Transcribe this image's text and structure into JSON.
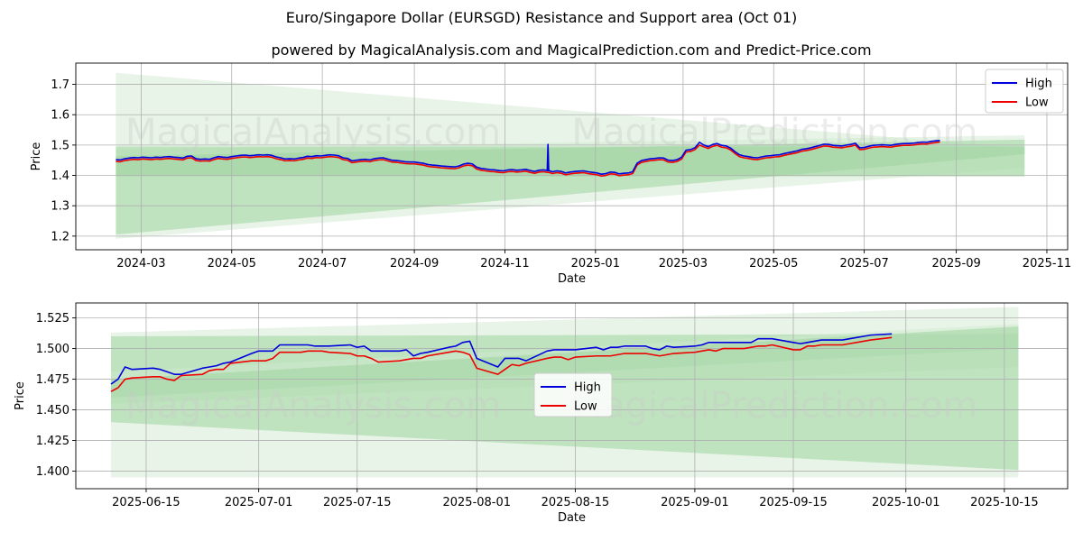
{
  "header": {
    "title": "Euro/Singapore Dollar (EURSGD) Resistance and Support area (Oct 01)",
    "subtitle": "powered by MagicalAnalysis.com and MagicalPrediction.com and Predict-Price.com"
  },
  "watermarks": [
    "MagicalAnalysis.com",
    "MagicalPrediction.com"
  ],
  "colors": {
    "high": "#0000dd",
    "low": "#ee0000",
    "band_dark": "#9fd39f",
    "band_light": "#cfe9cf",
    "grid": "#b0b0b0"
  },
  "chart_data": [
    {
      "type": "line",
      "name": "top-chart",
      "xlabel": "Date",
      "ylabel": "Price",
      "xlim": [
        "2024-01-17",
        "2025-11-15"
      ],
      "ylim": [
        1.155,
        1.77
      ],
      "grid": true,
      "legend": "top-right",
      "x_ticks": [
        "2024-03",
        "2024-05",
        "2024-07",
        "2024-09",
        "2024-11",
        "2025-01",
        "2025-03",
        "2025-05",
        "2025-07",
        "2025-09",
        "2025-11"
      ],
      "y_ticks": [
        "1.2",
        "1.3",
        "1.4",
        "1.5",
        "1.6",
        "1.7"
      ],
      "x_start": "2024-02-13",
      "x_step_days": 3,
      "high": [
        1.452,
        1.451,
        1.455,
        1.457,
        1.459,
        1.458,
        1.46,
        1.459,
        1.458,
        1.46,
        1.459,
        1.461,
        1.462,
        1.46,
        1.459,
        1.457,
        1.463,
        1.464,
        1.455,
        1.453,
        1.454,
        1.453,
        1.458,
        1.462,
        1.46,
        1.459,
        1.462,
        1.464,
        1.466,
        1.467,
        1.465,
        1.466,
        1.468,
        1.467,
        1.468,
        1.466,
        1.461,
        1.458,
        1.454,
        1.455,
        1.454,
        1.457,
        1.459,
        1.463,
        1.462,
        1.465,
        1.464,
        1.466,
        1.468,
        1.467,
        1.465,
        1.458,
        1.456,
        1.448,
        1.45,
        1.452,
        1.453,
        1.451,
        1.455,
        1.457,
        1.458,
        1.454,
        1.45,
        1.449,
        1.447,
        1.445,
        1.444,
        1.444,
        1.442,
        1.44,
        1.436,
        1.434,
        1.433,
        1.431,
        1.43,
        1.429,
        1.428,
        1.431,
        1.437,
        1.44,
        1.438,
        1.427,
        1.423,
        1.421,
        1.419,
        1.418,
        1.416,
        1.415,
        1.418,
        1.419,
        1.417,
        1.418,
        1.42,
        1.416,
        1.413,
        1.417,
        1.418,
        1.416,
        1.412,
        1.415,
        1.413,
        1.408,
        1.411,
        1.413,
        1.414,
        1.415,
        1.412,
        1.41,
        1.408,
        1.404,
        1.406,
        1.411,
        1.41,
        1.405,
        1.407,
        1.408,
        1.412,
        1.44,
        1.449,
        1.452,
        1.455,
        1.456,
        1.458,
        1.457,
        1.45,
        1.449,
        1.452,
        1.46,
        1.483,
        1.485,
        1.491,
        1.509,
        1.5,
        1.495,
        1.502,
        1.505,
        1.499,
        1.497,
        1.49,
        1.478,
        1.468,
        1.464,
        1.462,
        1.459,
        1.458,
        1.461,
        1.464,
        1.465,
        1.467,
        1.468,
        1.472,
        1.475,
        1.478,
        1.481,
        1.486,
        1.488,
        1.491,
        1.495,
        1.499,
        1.503,
        1.502,
        1.499,
        1.498,
        1.497,
        1.5,
        1.502,
        1.506,
        1.491,
        1.492,
        1.496,
        1.499,
        1.5,
        1.501,
        1.5,
        1.499,
        1.502,
        1.504,
        1.505,
        1.505,
        1.506,
        1.508,
        1.51,
        1.509,
        1.512,
        1.514,
        1.515
      ],
      "low": [
        1.446,
        1.445,
        1.449,
        1.451,
        1.453,
        1.452,
        1.454,
        1.453,
        1.452,
        1.454,
        1.453,
        1.455,
        1.456,
        1.454,
        1.453,
        1.451,
        1.457,
        1.458,
        1.449,
        1.447,
        1.448,
        1.447,
        1.452,
        1.456,
        1.454,
        1.453,
        1.456,
        1.458,
        1.46,
        1.461,
        1.459,
        1.46,
        1.462,
        1.461,
        1.462,
        1.46,
        1.455,
        1.452,
        1.448,
        1.449,
        1.448,
        1.451,
        1.453,
        1.457,
        1.456,
        1.459,
        1.458,
        1.46,
        1.462,
        1.461,
        1.459,
        1.452,
        1.45,
        1.442,
        1.444,
        1.446,
        1.447,
        1.445,
        1.449,
        1.451,
        1.452,
        1.448,
        1.444,
        1.443,
        1.441,
        1.439,
        1.438,
        1.438,
        1.436,
        1.434,
        1.43,
        1.428,
        1.427,
        1.425,
        1.424,
        1.423,
        1.422,
        1.425,
        1.431,
        1.434,
        1.432,
        1.421,
        1.417,
        1.415,
        1.413,
        1.412,
        1.41,
        1.409,
        1.412,
        1.413,
        1.411,
        1.412,
        1.414,
        1.41,
        1.407,
        1.411,
        1.412,
        1.41,
        1.406,
        1.409,
        1.407,
        1.402,
        1.405,
        1.407,
        1.408,
        1.409,
        1.406,
        1.404,
        1.402,
        1.398,
        1.4,
        1.405,
        1.404,
        1.399,
        1.401,
        1.402,
        1.406,
        1.434,
        1.443,
        1.446,
        1.449,
        1.45,
        1.452,
        1.451,
        1.444,
        1.443,
        1.446,
        1.454,
        1.477,
        1.479,
        1.485,
        1.5,
        1.494,
        1.489,
        1.496,
        1.499,
        1.493,
        1.491,
        1.484,
        1.472,
        1.462,
        1.458,
        1.456,
        1.453,
        1.452,
        1.455,
        1.458,
        1.459,
        1.461,
        1.462,
        1.466,
        1.469,
        1.472,
        1.475,
        1.48,
        1.482,
        1.485,
        1.489,
        1.493,
        1.497,
        1.496,
        1.493,
        1.492,
        1.491,
        1.494,
        1.496,
        1.5,
        1.485,
        1.486,
        1.49,
        1.493,
        1.494,
        1.495,
        1.494,
        1.493,
        1.496,
        1.498,
        1.499,
        1.499,
        1.5,
        1.502,
        1.504,
        1.503,
        1.506,
        1.508,
        1.51
      ],
      "spike": {
        "date": "2024-11-30",
        "high": 1.502,
        "low": 1.41
      },
      "bands": [
        {
          "kind": "light",
          "x0": "2024-02-13",
          "x1": "2025-10-17",
          "top0": 1.738,
          "top1": 1.49,
          "bot0": 1.191,
          "bot1": 1.425
        },
        {
          "kind": "light",
          "x0": "2024-02-13",
          "x1": "2025-10-17",
          "top0": 1.485,
          "top1": 1.532,
          "bot0": 1.395,
          "bot1": 1.395
        },
        {
          "kind": "dark",
          "x0": "2024-02-13",
          "x1": "2025-10-17",
          "top0": 1.495,
          "top1": 1.495,
          "bot0": 1.398,
          "bot1": 1.398
        },
        {
          "kind": "dark",
          "x0": "2024-02-13",
          "x1": "2025-10-17",
          "top0": 1.464,
          "top1": 1.518,
          "bot0": 1.205,
          "bot1": 1.47
        }
      ]
    },
    {
      "type": "line",
      "name": "bottom-chart",
      "xlabel": "Date",
      "ylabel": "Price",
      "xlim": [
        "2025-06-05",
        "2025-10-24"
      ],
      "ylim": [
        1.3857,
        1.5372
      ],
      "grid": true,
      "legend": "center",
      "x_ticks": [
        "2025-06-15",
        "2025-07-01",
        "2025-07-15",
        "2025-08-01",
        "2025-08-15",
        "2025-09-01",
        "2025-09-15",
        "2025-10-01",
        "2025-10-15"
      ],
      "y_ticks": [
        "1.400",
        "1.425",
        "1.450",
        "1.475",
        "1.500",
        "1.525"
      ],
      "x": [
        "2025-06-10",
        "2025-06-11",
        "2025-06-12",
        "2025-06-13",
        "2025-06-16",
        "2025-06-17",
        "2025-06-18",
        "2025-06-19",
        "2025-06-20",
        "2025-06-23",
        "2025-06-24",
        "2025-06-25",
        "2025-06-26",
        "2025-06-27",
        "2025-06-30",
        "2025-07-01",
        "2025-07-02",
        "2025-07-03",
        "2025-07-04",
        "2025-07-07",
        "2025-07-08",
        "2025-07-09",
        "2025-07-10",
        "2025-07-11",
        "2025-07-14",
        "2025-07-15",
        "2025-07-16",
        "2025-07-17",
        "2025-07-18",
        "2025-07-21",
        "2025-07-22",
        "2025-07-23",
        "2025-07-24",
        "2025-07-25",
        "2025-07-28",
        "2025-07-29",
        "2025-07-30",
        "2025-07-31",
        "2025-08-01",
        "2025-08-04",
        "2025-08-05",
        "2025-08-06",
        "2025-08-07",
        "2025-08-08",
        "2025-08-11",
        "2025-08-12",
        "2025-08-13",
        "2025-08-14",
        "2025-08-15",
        "2025-08-18",
        "2025-08-19",
        "2025-08-20",
        "2025-08-21",
        "2025-08-22",
        "2025-08-25",
        "2025-08-26",
        "2025-08-27",
        "2025-08-28",
        "2025-08-29",
        "2025-09-01",
        "2025-09-02",
        "2025-09-03",
        "2025-09-04",
        "2025-09-05",
        "2025-09-08",
        "2025-09-09",
        "2025-09-10",
        "2025-09-11",
        "2025-09-12",
        "2025-09-15",
        "2025-09-16",
        "2025-09-17",
        "2025-09-18",
        "2025-09-19",
        "2025-09-22",
        "2025-09-23",
        "2025-09-24",
        "2025-09-25",
        "2025-09-26",
        "2025-09-29"
      ],
      "high": [
        1.471,
        1.475,
        1.485,
        1.483,
        1.484,
        1.483,
        1.481,
        1.479,
        1.479,
        1.484,
        1.485,
        1.486,
        1.488,
        1.489,
        1.496,
        1.498,
        1.498,
        1.498,
        1.503,
        1.503,
        1.503,
        1.502,
        1.502,
        1.502,
        1.503,
        1.501,
        1.502,
        1.498,
        1.498,
        1.498,
        1.499,
        1.494,
        1.496,
        1.497,
        1.501,
        1.502,
        1.505,
        1.506,
        1.492,
        1.485,
        1.492,
        1.492,
        1.492,
        1.49,
        1.498,
        1.499,
        1.499,
        1.499,
        1.499,
        1.501,
        1.499,
        1.501,
        1.501,
        1.502,
        1.502,
        1.5,
        1.499,
        1.502,
        1.501,
        1.502,
        1.503,
        1.505,
        1.505,
        1.505,
        1.505,
        1.505,
        1.508,
        1.508,
        1.508,
        1.505,
        1.504,
        1.505,
        1.506,
        1.507,
        1.507,
        1.508,
        1.509,
        1.51,
        1.511,
        1.512
      ],
      "low": [
        1.465,
        1.468,
        1.475,
        1.476,
        1.477,
        1.477,
        1.475,
        1.474,
        1.478,
        1.479,
        1.482,
        1.483,
        1.483,
        1.488,
        1.49,
        1.49,
        1.49,
        1.492,
        1.497,
        1.497,
        1.498,
        1.498,
        1.498,
        1.497,
        1.496,
        1.494,
        1.494,
        1.492,
        1.489,
        1.49,
        1.491,
        1.492,
        1.492,
        1.494,
        1.497,
        1.498,
        1.497,
        1.495,
        1.484,
        1.479,
        1.483,
        1.487,
        1.486,
        1.488,
        1.492,
        1.493,
        1.493,
        1.491,
        1.493,
        1.494,
        1.494,
        1.494,
        1.495,
        1.496,
        1.496,
        1.495,
        1.494,
        1.495,
        1.496,
        1.497,
        1.498,
        1.499,
        1.498,
        1.5,
        1.5,
        1.501,
        1.502,
        1.502,
        1.503,
        1.499,
        1.499,
        1.502,
        1.502,
        1.503,
        1.503,
        1.504,
        1.505,
        1.506,
        1.507,
        1.509
      ],
      "bands": [
        {
          "kind": "light",
          "x0": "2025-06-10",
          "x1": "2025-10-17",
          "top0": 1.513,
          "top1": 1.534,
          "bot0": 1.455,
          "bot1": 1.485
        },
        {
          "kind": "dark",
          "x0": "2025-06-10",
          "x1": "2025-10-17",
          "top0": 1.51,
          "top1": 1.512,
          "bot0": 1.46,
          "bot1": 1.5
        },
        {
          "kind": "light",
          "x0": "2025-06-10",
          "x1": "2025-10-17",
          "top0": 1.481,
          "top1": 1.52,
          "bot0": 1.395,
          "bot1": 1.395
        },
        {
          "kind": "dark",
          "x0": "2025-06-10",
          "x1": "2025-10-17",
          "top0": 1.475,
          "top1": 1.518,
          "bot0": 1.44,
          "bot1": 1.401
        }
      ]
    }
  ],
  "legend": {
    "high_label": "High",
    "low_label": "Low"
  }
}
